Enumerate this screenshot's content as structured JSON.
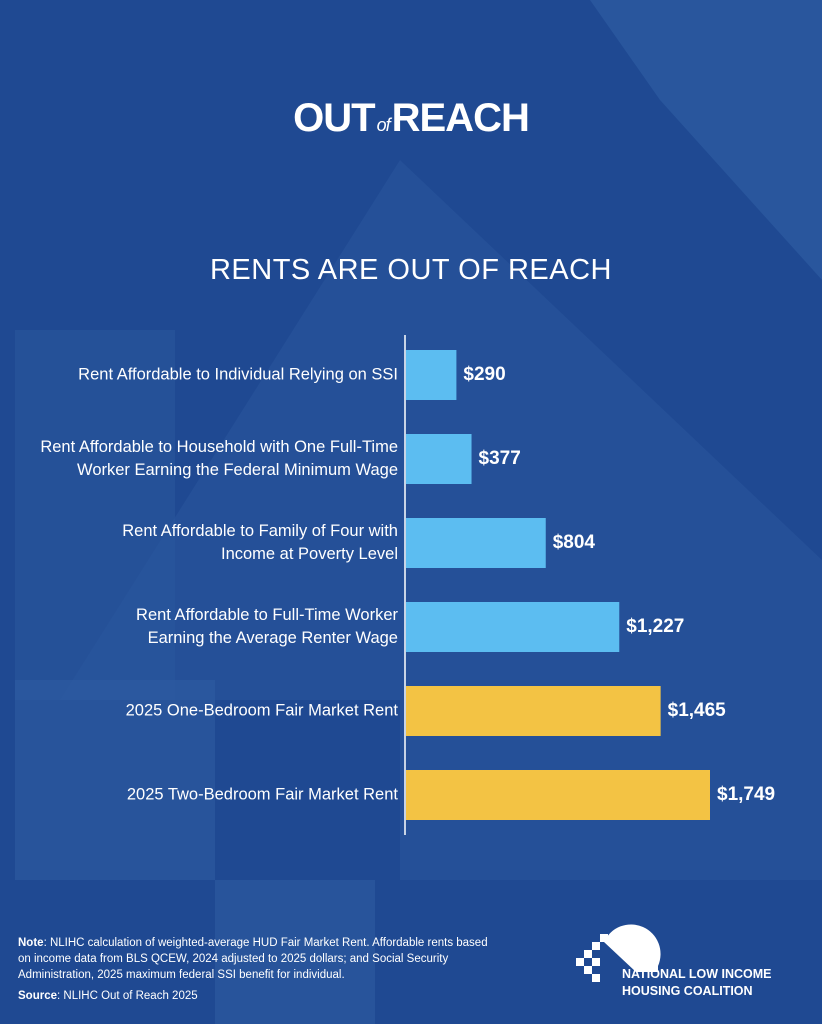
{
  "header": {
    "logo_out": "OUT",
    "logo_of": "of",
    "logo_reach": "REACH"
  },
  "chart_data": {
    "type": "bar",
    "orientation": "horizontal",
    "title": "RENTS ARE OUT OF REACH",
    "categories": [
      "Rent Affordable to Individual Relying on SSI",
      "Rent Affordable to Household with One Full-Time Worker Earning the Federal Minimum Wage",
      "Rent Affordable to Family of Four with Income at Poverty Level",
      "Rent Affordable to Full-Time Worker Earning the Average Renter Wage",
      "2025 One-Bedroom Fair Market Rent",
      "2025 Two-Bedroom Fair Market Rent"
    ],
    "category_lines": [
      [
        "Rent Affordable to Individual Relying on SSI"
      ],
      [
        "Rent Affordable to Household with One Full-Time",
        "Worker Earning the Federal Minimum Wage"
      ],
      [
        "Rent Affordable to Family of Four with",
        "Income at Poverty Level"
      ],
      [
        "Rent Affordable to Full-Time Worker",
        "Earning the Average Renter Wage"
      ],
      [
        "2025 One-Bedroom Fair Market Rent"
      ],
      [
        "2025 Two-Bedroom Fair Market Rent"
      ]
    ],
    "values": [
      290,
      377,
      804,
      1227,
      1465,
      1749
    ],
    "value_labels": [
      "$290",
      "$377",
      "$804",
      "$1,227",
      "$1,465",
      "$1,749"
    ],
    "colors": [
      "#5cbdf1",
      "#5cbdf1",
      "#5cbdf1",
      "#5cbdf1",
      "#f3c344",
      "#f3c344"
    ],
    "xlim": [
      0,
      1749
    ],
    "grid": false
  },
  "footer": {
    "note_label": "Note",
    "note_text": ": NLIHC calculation of weighted-average HUD Fair Market Rent. Affordable rents based on income data from BLS QCEW, 2024 adjusted to 2025 dollars; and Social Security Administration, 2025 maximum federal SSI benefit for individual.",
    "source_label": "Source",
    "source_text": ": NLIHC Out of Reach 2025",
    "org_line1": "NATIONAL LOW INCOME",
    "org_line2": "HOUSING COALITION"
  }
}
